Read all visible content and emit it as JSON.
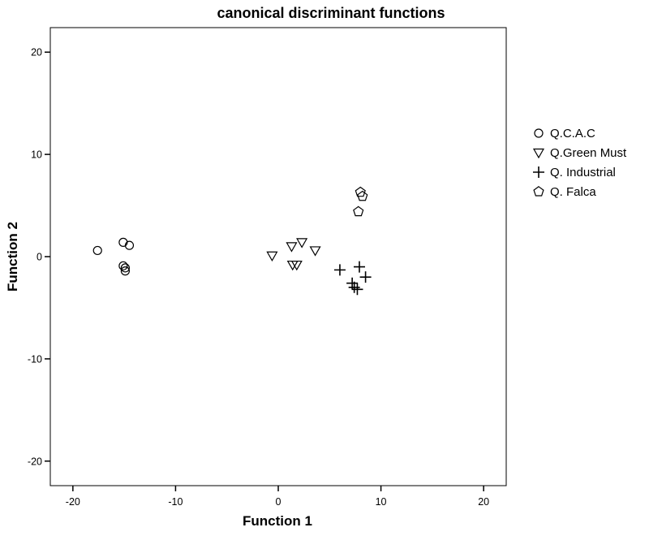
{
  "chart_data": {
    "type": "scatter",
    "title": "canonical discriminant functions",
    "xlabel": "Function 1",
    "ylabel": "Function 2",
    "xlim": [
      -22.2,
      22.2
    ],
    "ylim": [
      -22.4,
      22.4
    ],
    "xticks": [
      -20,
      -10,
      0,
      10,
      20
    ],
    "yticks": [
      -20,
      -10,
      0,
      10,
      20
    ],
    "grid": false,
    "legend_position": "right",
    "series": [
      {
        "name": "Q.C.A.C",
        "marker": "circle",
        "points": [
          {
            "x": -17.6,
            "y": 0.6
          },
          {
            "x": -15.1,
            "y": 1.4
          },
          {
            "x": -14.5,
            "y": 1.1
          },
          {
            "x": -15.1,
            "y": -0.9
          },
          {
            "x": -14.9,
            "y": -1.1
          },
          {
            "x": -14.9,
            "y": -1.4
          }
        ]
      },
      {
        "name": "Q.Green Must",
        "marker": "triangle-down",
        "points": [
          {
            "x": -0.6,
            "y": 0.1
          },
          {
            "x": 1.3,
            "y": 1.0
          },
          {
            "x": 2.3,
            "y": 1.4
          },
          {
            "x": 3.6,
            "y": 0.6
          },
          {
            "x": 1.4,
            "y": -0.8
          },
          {
            "x": 1.8,
            "y": -0.8
          }
        ]
      },
      {
        "name": "Q. Industrial",
        "marker": "plus",
        "points": [
          {
            "x": 6.0,
            "y": -1.3
          },
          {
            "x": 7.9,
            "y": -1.0
          },
          {
            "x": 8.5,
            "y": -2.0
          },
          {
            "x": 7.2,
            "y": -2.6
          },
          {
            "x": 7.4,
            "y": -3.0
          },
          {
            "x": 7.7,
            "y": -3.2
          }
        ]
      },
      {
        "name": "Q. Falca",
        "marker": "pentagon",
        "points": [
          {
            "x": 8.0,
            "y": 6.3
          },
          {
            "x": 8.2,
            "y": 5.9
          },
          {
            "x": 7.8,
            "y": 4.4
          }
        ]
      }
    ]
  }
}
